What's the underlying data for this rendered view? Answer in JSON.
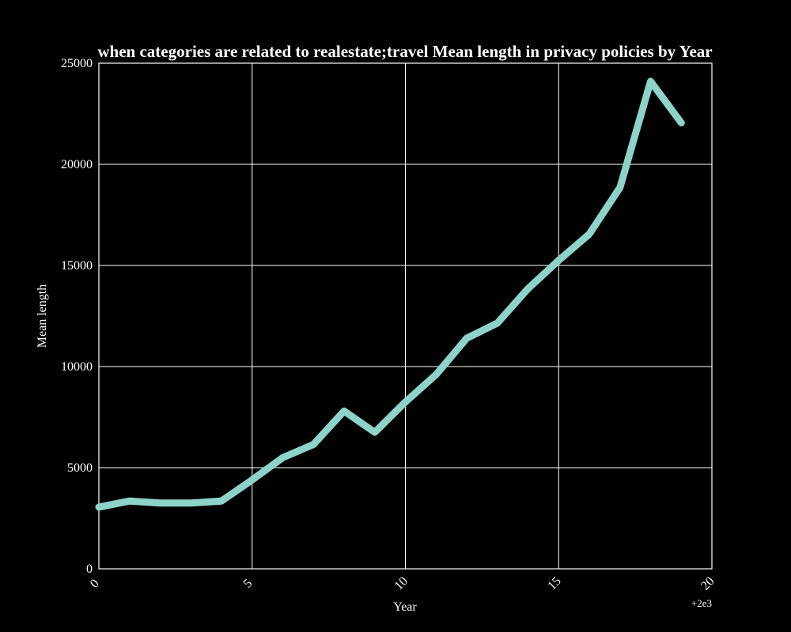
{
  "chart_data": {
    "type": "line",
    "title": "when categories are related to realestate;travel Mean length in privacy policies by Year",
    "xlabel": "Year",
    "ylabel": "Mean length",
    "x_offset_label": "+2e3",
    "xlim": [
      0,
      20
    ],
    "ylim": [
      0,
      25000
    ],
    "x_ticks": [
      0,
      5,
      10,
      15,
      20
    ],
    "y_ticks": [
      0,
      5000,
      10000,
      15000,
      20000,
      25000
    ],
    "grid": true,
    "series": [
      {
        "color": "#8dd3c7",
        "x": [
          0,
          1,
          2,
          3,
          4,
          5,
          6,
          7,
          8,
          9,
          10,
          11,
          12,
          13,
          14,
          15,
          16,
          17,
          18,
          19
        ],
        "y": [
          3050,
          3350,
          3250,
          3250,
          3350,
          4400,
          5500,
          6150,
          7800,
          6750,
          8250,
          9600,
          11400,
          12150,
          13850,
          15250,
          16550,
          18850,
          24100,
          22050
        ]
      }
    ]
  }
}
